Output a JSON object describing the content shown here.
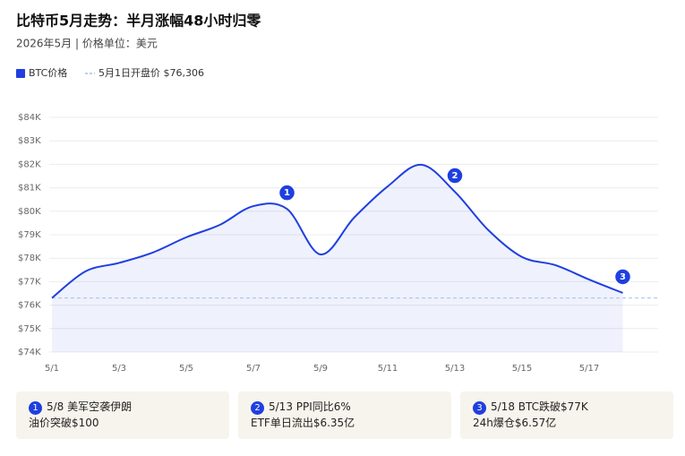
{
  "chart_data": {
    "type": "line",
    "title": "比特币5月走势：半月涨幅48小时归零",
    "subtitle": "2026年5月 | 价格单位：美元",
    "categories": [
      "5/1",
      null,
      "5/3",
      null,
      "5/5",
      null,
      "5/7",
      null,
      "5/9",
      null,
      "5/11",
      null,
      "5/13",
      null,
      "5/15",
      null,
      "5/17",
      null
    ],
    "series": [
      {
        "name": "BTC价格",
        "color": "#1f3fe0",
        "values": [
          76306,
          77440,
          77800,
          78240,
          78890,
          79420,
          80220,
          80100,
          78160,
          79730,
          81060,
          81980,
          80830,
          79190,
          78050,
          77700,
          77090,
          76520
        ]
      }
    ],
    "reference_line": {
      "name": "5月1日开盘价 $76,306",
      "value": 76306,
      "color": "#9ec3ea"
    },
    "ylim": [
      74000,
      84000
    ],
    "yticks": [
      {
        "value": 74000,
        "label": "$74K"
      },
      {
        "value": 75000,
        "label": "$75K"
      },
      {
        "value": 76000,
        "label": "$76K"
      },
      {
        "value": 77000,
        "label": "$77K"
      },
      {
        "value": 78000,
        "label": "$78K"
      },
      {
        "value": 79000,
        "label": "$79K"
      },
      {
        "value": 80000,
        "label": "$80K"
      },
      {
        "value": 81000,
        "label": "$81K"
      },
      {
        "value": 82000,
        "label": "$82K"
      },
      {
        "value": 83000,
        "label": "$83K"
      },
      {
        "value": 84000,
        "label": "$84K"
      }
    ],
    "grid": true,
    "annotations": [
      {
        "label": "1",
        "index": 7,
        "line1": "5/8 美军空袭伊朗",
        "line2": "油价突破$100"
      },
      {
        "label": "2",
        "index": 12,
        "line1": "5/13 PPI同比6%",
        "line2": "ETF单日流出$6.35亿"
      },
      {
        "label": "3",
        "index": 17,
        "line1": "5/18 BTC跌破$77K",
        "line2": "24h爆仓$6.57亿"
      }
    ]
  }
}
